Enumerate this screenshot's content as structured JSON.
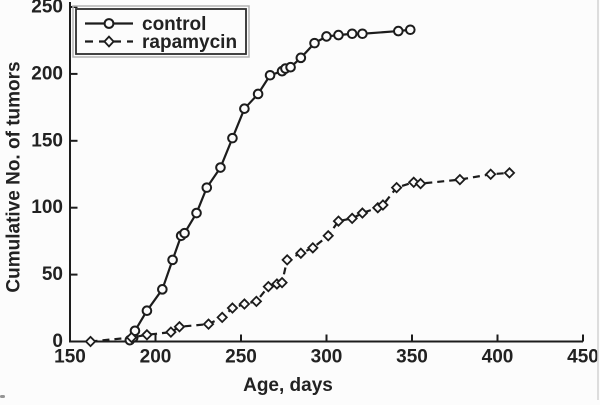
{
  "figure": {
    "background": "#fcfcfc",
    "ink": "#1c1c1c",
    "text_color": "#222222"
  },
  "chart_data": {
    "type": "line",
    "title": "",
    "xlabel": "Age, days",
    "ylabel": "Cumulative No. of tumors",
    "xlim": [
      150,
      450
    ],
    "ylim": [
      0,
      250
    ],
    "xticks": [
      "150",
      "200",
      "250",
      "300",
      "350",
      "400",
      "450"
    ],
    "yticks": [
      "0",
      "50",
      "100",
      "150",
      "200",
      "250"
    ],
    "grid": false,
    "legend_position": "top-left-inside",
    "series": [
      {
        "name": "control",
        "line_style": "solid",
        "marker": "circle",
        "color": "#1c1c1c",
        "points": [
          [
            185,
            1
          ],
          [
            187,
            3
          ],
          [
            188,
            8
          ],
          [
            195,
            23
          ],
          [
            204,
            39
          ],
          [
            210,
            61
          ],
          [
            215,
            79
          ],
          [
            217,
            81
          ],
          [
            224,
            96
          ],
          [
            230,
            115
          ],
          [
            238,
            130
          ],
          [
            245,
            152
          ],
          [
            252,
            174
          ],
          [
            260,
            185
          ],
          [
            267,
            199
          ],
          [
            274,
            202
          ],
          [
            276,
            204
          ],
          [
            279,
            205
          ],
          [
            285,
            212
          ],
          [
            293,
            223
          ],
          [
            300,
            228
          ],
          [
            307,
            229
          ],
          [
            315,
            230
          ],
          [
            321,
            230
          ],
          [
            342,
            232
          ],
          [
            349,
            233
          ]
        ]
      },
      {
        "name": "rapamycin",
        "line_style": "dashed",
        "marker": "diamond",
        "color": "#1c1c1c",
        "points": [
          [
            162,
            0
          ],
          [
            186,
            3
          ],
          [
            195,
            5
          ],
          [
            209,
            7
          ],
          [
            214,
            11
          ],
          [
            231,
            13
          ],
          [
            239,
            18
          ],
          [
            245,
            25
          ],
          [
            252,
            28
          ],
          [
            259,
            30
          ],
          [
            266,
            41
          ],
          [
            271,
            43
          ],
          [
            274,
            44
          ],
          [
            277,
            61
          ],
          [
            285,
            66
          ],
          [
            292,
            70
          ],
          [
            301,
            79
          ],
          [
            307,
            90
          ],
          [
            315,
            92
          ],
          [
            321,
            96
          ],
          [
            330,
            100
          ],
          [
            333,
            102
          ],
          [
            341,
            115
          ],
          [
            351,
            119
          ],
          [
            355,
            118
          ],
          [
            378,
            121
          ],
          [
            396,
            125
          ],
          [
            407,
            126
          ]
        ]
      }
    ]
  }
}
